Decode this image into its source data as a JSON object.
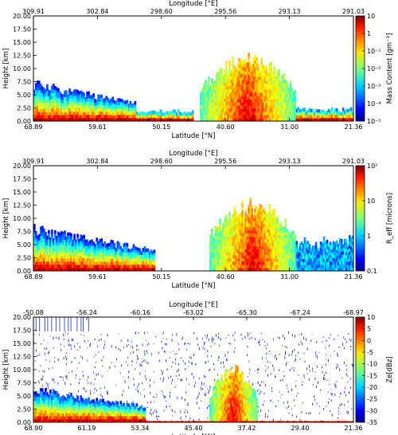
{
  "chart_data": [
    {
      "type": "heatmap",
      "title": "",
      "top_axis_label": "Longitude [°E]",
      "top_ticks": [
        "309.91",
        "302.84",
        "298.60",
        "295.56",
        "293.13",
        "291.03"
      ],
      "xlabel": "Latitude [°N]",
      "x_ticks": [
        "68.89",
        "59.61",
        "50.15",
        "40.60",
        "31.00",
        "21.36"
      ],
      "ylabel": "Height [km]",
      "y_ticks": [
        "0.00",
        "2.50",
        "5.00",
        "7.50",
        "10.00",
        "12.50",
        "15.00",
        "17.50",
        "20.00"
      ],
      "ylim": [
        0,
        20
      ],
      "colorbar_label": "Mass Content [gm⁻³]",
      "colorbar_ticks": [
        "10",
        "1",
        "10⁻¹",
        "10⁻²",
        "10⁻³",
        "10⁻⁴",
        "10⁻⁵"
      ],
      "scale": "log",
      "colormap": "jet",
      "features": [
        {
          "name": "shallow cloud",
          "x_range": [
            0.0,
            0.32
          ],
          "top_km": 8.0
        },
        {
          "name": "low cloud",
          "x_range": [
            0.32,
            0.5
          ],
          "top_km": 2.5
        },
        {
          "name": "deep convective cloud",
          "x_range": [
            0.52,
            0.82
          ],
          "top_km": 13.0
        },
        {
          "name": "low layer",
          "x_range": [
            0.82,
            1.0
          ],
          "top_km": 3.0
        }
      ]
    },
    {
      "type": "heatmap",
      "title": "",
      "top_axis_label": "Longitude [°E]",
      "top_ticks": [
        "309.91",
        "302.84",
        "298.60",
        "295.56",
        "293.13",
        "291.03"
      ],
      "xlabel": "Latitude [°N]",
      "x_ticks": [
        "68.89",
        "59.61",
        "50.15",
        "40.60",
        "31.00",
        "21.36"
      ],
      "ylabel": "Height [km]",
      "y_ticks": [
        "0.00",
        "2.50",
        "5.00",
        "7.50",
        "10.00",
        "12.50",
        "15.00",
        "17.50",
        "20.00"
      ],
      "ylim": [
        0,
        20
      ],
      "colorbar_label": "R_eff [microns]",
      "colorbar_ticks": [
        "10²",
        "10",
        "1",
        "0.1"
      ],
      "scale": "log",
      "colormap": "jet",
      "features": [
        {
          "name": "shallow cloud",
          "x_range": [
            0.0,
            0.38
          ],
          "top_km": 9.0
        },
        {
          "name": "deep convective cloud",
          "x_range": [
            0.55,
            0.82
          ],
          "top_km": 14.0
        },
        {
          "name": "low layer",
          "x_range": [
            0.82,
            1.0
          ],
          "top_km": 7.0
        }
      ]
    },
    {
      "type": "heatmap",
      "title": "",
      "top_axis_label": "Longitude [°E]",
      "top_ticks": [
        "-50.08",
        "-56.24",
        "-60.16",
        "-63.02",
        "-65.30",
        "-67.24",
        "-68.97"
      ],
      "xlabel": "Latitude [°N]",
      "x_ticks": [
        "68.90",
        "61.19",
        "53.34",
        "45.40",
        "37.42",
        "29.40",
        "21.36"
      ],
      "ylabel": "Height [km]",
      "y_ticks": [
        "0.00",
        "2.50",
        "5.00",
        "7.50",
        "10.00",
        "12.50",
        "15.00",
        "17.50",
        "20.00"
      ],
      "ylim": [
        0,
        20
      ],
      "colorbar_label": "Ze[dBz]",
      "colorbar_ticks": [
        "10",
        "5",
        "0",
        "-5",
        "-10",
        "-15",
        "-20",
        "-25",
        "-30",
        "-35"
      ],
      "vrange": [
        -35,
        10
      ],
      "colormap": "jet",
      "features": [
        {
          "name": "shallow cloud",
          "x_range": [
            0.0,
            0.35
          ],
          "top_km": 7.0
        },
        {
          "name": "deep convective cloud",
          "x_range": [
            0.55,
            0.7
          ],
          "top_km": 11.0
        },
        {
          "name": "surface clutter",
          "x_range": [
            0.0,
            1.0
          ],
          "top_km": 0.3
        }
      ]
    }
  ]
}
